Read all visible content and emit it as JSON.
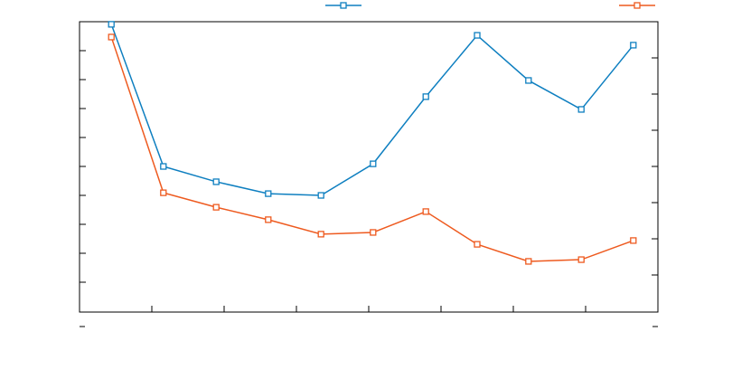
{
  "chart_data": {
    "type": "line",
    "x": [
      0.44,
      1.16,
      1.89,
      2.61,
      3.34,
      4.06,
      4.79,
      5.5,
      6.21,
      6.94,
      7.66
    ],
    "xlim": [
      0,
      8
    ],
    "xticks": [
      1,
      2,
      3,
      4,
      5,
      6,
      7
    ],
    "ylim": [
      0,
      10
    ],
    "yticks": [
      1,
      2,
      3,
      4,
      5,
      6,
      7,
      8,
      9
    ],
    "y2lim": [
      0,
      8
    ],
    "y2ticks": [
      1,
      2,
      3,
      4,
      5,
      6,
      7
    ],
    "grid": false,
    "series": [
      {
        "color": "#0e7fc0",
        "values": [
          9.91,
          5.0,
          4.47,
          4.06,
          4.0,
          5.09,
          7.41,
          9.53,
          7.97,
          6.97,
          9.19
        ]
      },
      {
        "color": "#ee5a1f",
        "values": [
          9.47,
          4.09,
          3.59,
          3.16,
          2.66,
          2.72,
          3.44,
          2.31,
          1.72,
          1.78,
          2.44
        ]
      }
    ]
  }
}
